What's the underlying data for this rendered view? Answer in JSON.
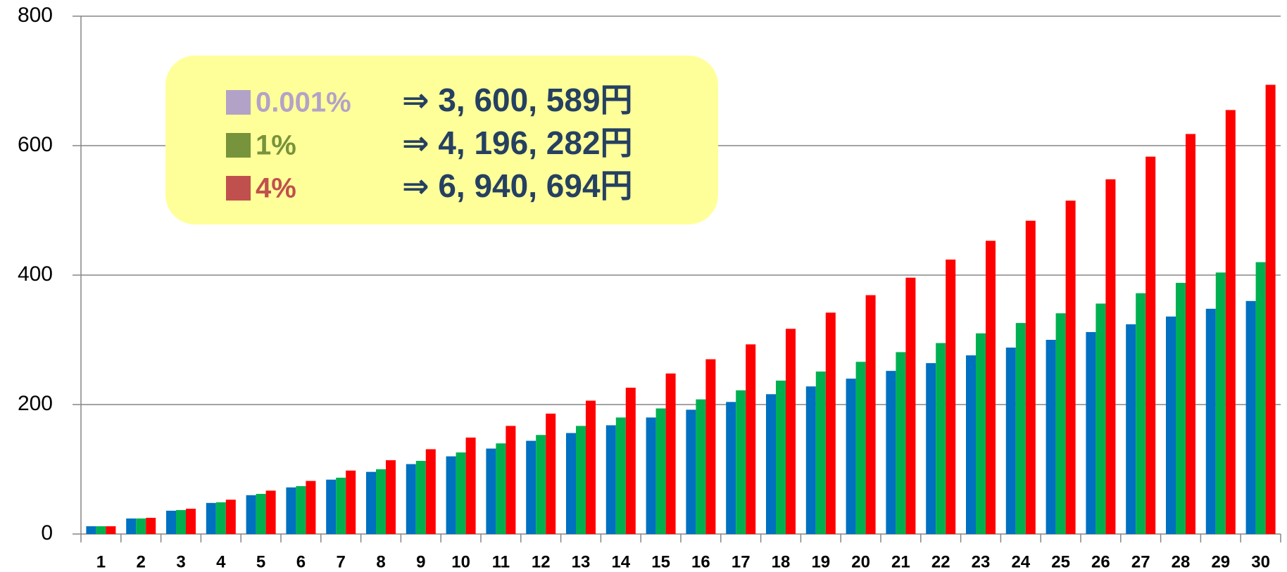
{
  "chart_data": {
    "type": "bar",
    "categories": [
      "1",
      "2",
      "3",
      "4",
      "5",
      "6",
      "7",
      "8",
      "9",
      "10",
      "11",
      "12",
      "13",
      "14",
      "15",
      "16",
      "17",
      "18",
      "19",
      "20",
      "21",
      "22",
      "23",
      "24",
      "25",
      "26",
      "27",
      "28",
      "29",
      "30"
    ],
    "series": [
      {
        "name": "0.001%",
        "color": "#0070c0",
        "legend_color": "#b3a2c7",
        "note": "⇒ 3, 600, 589円",
        "values": [
          12,
          24,
          36,
          48,
          60,
          72,
          84,
          96,
          108,
          120,
          132,
          144,
          156,
          168,
          180,
          192,
          204,
          216,
          228,
          240,
          252,
          264,
          276,
          288,
          300,
          312,
          324,
          336,
          348,
          360
        ]
      },
      {
        "name": "1%",
        "color": "#00b050",
        "legend_color": "#77933c",
        "note": "⇒ 4, 196, 282円",
        "values": [
          12,
          24,
          37,
          49,
          62,
          74,
          87,
          100,
          113,
          126,
          140,
          153,
          167,
          180,
          194,
          208,
          222,
          237,
          251,
          266,
          281,
          295,
          310,
          326,
          341,
          356,
          372,
          388,
          404,
          420
        ]
      },
      {
        "name": "4%",
        "color": "#ff0000",
        "legend_color": "#c0504d",
        "note": "⇒ 6, 940, 694円",
        "values": [
          12,
          25,
          39,
          53,
          67,
          82,
          98,
          114,
          131,
          149,
          167,
          186,
          206,
          226,
          248,
          270,
          293,
          317,
          342,
          369,
          396,
          424,
          453,
          484,
          515,
          548,
          583,
          618,
          655,
          694
        ]
      }
    ],
    "ylim": [
      0,
      800
    ],
    "yticks": [
      0,
      200,
      400,
      600,
      800
    ],
    "grid": true
  }
}
